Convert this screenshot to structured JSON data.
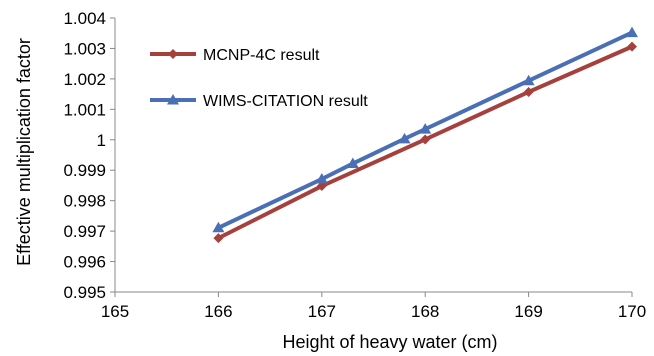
{
  "chart_data": {
    "type": "line",
    "title": "",
    "xlabel": "Height of heavy water (cm)",
    "ylabel": "Effective multiplication factor",
    "xlim": [
      165,
      170
    ],
    "ylim": [
      0.995,
      1.004
    ],
    "x_ticks": [
      "165",
      "166",
      "167",
      "168",
      "169",
      "170"
    ],
    "y_ticks": [
      "0.995",
      "0.996",
      "0.997",
      "0.998",
      "0.999",
      "1",
      "1.001",
      "1.002",
      "1.003",
      "1.004"
    ],
    "grid": false,
    "legend_position": "top-left",
    "series": [
      {
        "name": "MCNP-4C result",
        "color": "#a6403c",
        "marker": "diamond",
        "x": [
          166,
          167,
          168,
          169,
          170
        ],
        "y": [
          0.99677,
          0.99848,
          1.00001,
          1.00157,
          1.00306
        ]
      },
      {
        "name": "WIMS-CITATION result",
        "color": "#4a6fb5",
        "marker": "triangle",
        "x": [
          166,
          167,
          167.3,
          167.8,
          168,
          169,
          170
        ],
        "y": [
          0.99711,
          0.99871,
          0.99922,
          1.00003,
          1.00035,
          1.00194,
          1.00352
        ]
      }
    ]
  }
}
